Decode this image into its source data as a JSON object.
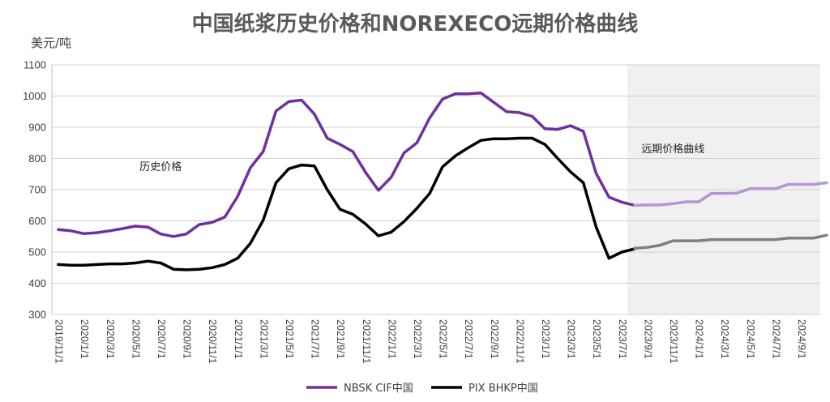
{
  "chart_data": {
    "type": "line",
    "title": "中国纸浆历史价格和NOREXECO远期价格曲线",
    "ylabel": "美元/吨",
    "ylim": [
      300,
      1100
    ],
    "yticks": [
      300,
      400,
      500,
      600,
      700,
      800,
      900,
      1000,
      1100
    ],
    "grid": "horizontal",
    "legend_position": "bottom",
    "x_start": "2019/11",
    "x_end": "2024/10",
    "forecast_start": "2023/7",
    "forecast_shading": "#f0f0f0",
    "x_tick_labels": [
      "2019/11/1",
      "2020/1/1",
      "2020/3/1",
      "2020/5/1",
      "2020/7/1",
      "2020/9/1",
      "2020/11/1",
      "2021/1/1",
      "2021/3/1",
      "2021/5/1",
      "2021/7/1",
      "2021/9/1",
      "2021/11/1",
      "2022/1/1",
      "2022/3/1",
      "2022/5/1",
      "2022/7/1",
      "2022/9/1",
      "2022/11/1",
      "2023/1/1",
      "2023/3/1",
      "2023/5/1",
      "2023/7/1",
      "2023/9/1",
      "2023/11/1",
      "2024/1/1",
      "2024/3/1",
      "2024/5/1",
      "2024/7/1",
      "2024/9/1"
    ],
    "annotations": [
      {
        "text": "历史价格",
        "at": [
          "2020/7",
          762
        ]
      },
      {
        "text": "远期价格曲线",
        "at": [
          "2023/11",
          820
        ]
      }
    ],
    "series": [
      {
        "name": "NBSK CIF中国",
        "color": "#7030a0",
        "values": [
          [
            "2019/11",
            572
          ],
          [
            "2019/12",
            568
          ],
          [
            "2020/1",
            559
          ],
          [
            "2020/2",
            562
          ],
          [
            "2020/3",
            568
          ],
          [
            "2020/4",
            575
          ],
          [
            "2020/5",
            583
          ],
          [
            "2020/6",
            580
          ],
          [
            "2020/7",
            558
          ],
          [
            "2020/8",
            550
          ],
          [
            "2020/9",
            558
          ],
          [
            "2020/10",
            588
          ],
          [
            "2020/11",
            595
          ],
          [
            "2020/12",
            612
          ],
          [
            "2021/1",
            678
          ],
          [
            "2021/2",
            770
          ],
          [
            "2021/3",
            822
          ],
          [
            "2021/4",
            952
          ],
          [
            "2021/5",
            982
          ],
          [
            "2021/6",
            987
          ],
          [
            "2021/7",
            942
          ],
          [
            "2021/8",
            865
          ],
          [
            "2021/9",
            845
          ],
          [
            "2021/10",
            822
          ],
          [
            "2021/11",
            755
          ],
          [
            "2021/12",
            698
          ],
          [
            "2022/1",
            740
          ],
          [
            "2022/2",
            818
          ],
          [
            "2022/3",
            850
          ],
          [
            "2022/4",
            930
          ],
          [
            "2022/5",
            990
          ],
          [
            "2022/6",
            1007
          ],
          [
            "2022/7",
            1007
          ],
          [
            "2022/8",
            1010
          ],
          [
            "2022/9",
            980
          ],
          [
            "2022/10",
            950
          ],
          [
            "2022/11",
            947
          ],
          [
            "2022/12",
            935
          ],
          [
            "2023/1",
            895
          ],
          [
            "2023/2",
            893
          ],
          [
            "2023/3",
            905
          ],
          [
            "2023/4",
            887
          ],
          [
            "2023/5",
            752
          ],
          [
            "2023/6",
            676
          ],
          [
            "2023/7",
            660
          ],
          [
            "2023/8",
            650
          ]
        ]
      },
      {
        "name": "PIX BHKP中国",
        "color": "#000000",
        "values": [
          [
            "2019/11",
            460
          ],
          [
            "2019/12",
            458
          ],
          [
            "2020/1",
            458
          ],
          [
            "2020/2",
            460
          ],
          [
            "2020/3",
            462
          ],
          [
            "2020/4",
            462
          ],
          [
            "2020/5",
            465
          ],
          [
            "2020/6",
            471
          ],
          [
            "2020/7",
            465
          ],
          [
            "2020/8",
            445
          ],
          [
            "2020/9",
            443
          ],
          [
            "2020/10",
            445
          ],
          [
            "2020/11",
            450
          ],
          [
            "2020/12",
            460
          ],
          [
            "2021/1",
            480
          ],
          [
            "2021/2",
            528
          ],
          [
            "2021/3",
            602
          ],
          [
            "2021/4",
            722
          ],
          [
            "2021/5",
            767
          ],
          [
            "2021/6",
            779
          ],
          [
            "2021/7",
            776
          ],
          [
            "2021/8",
            700
          ],
          [
            "2021/9",
            637
          ],
          [
            "2021/10",
            621
          ],
          [
            "2021/11",
            590
          ],
          [
            "2021/12",
            552
          ],
          [
            "2022/1",
            564
          ],
          [
            "2022/2",
            598
          ],
          [
            "2022/3",
            640
          ],
          [
            "2022/4",
            688
          ],
          [
            "2022/5",
            773
          ],
          [
            "2022/6",
            808
          ],
          [
            "2022/7",
            834
          ],
          [
            "2022/8",
            858
          ],
          [
            "2022/9",
            863
          ],
          [
            "2022/10",
            863
          ],
          [
            "2022/11",
            865
          ],
          [
            "2022/12",
            865
          ],
          [
            "2023/1",
            845
          ],
          [
            "2023/2",
            800
          ],
          [
            "2023/3",
            757
          ],
          [
            "2023/4",
            722
          ],
          [
            "2023/5",
            580
          ],
          [
            "2023/6",
            480
          ],
          [
            "2023/7",
            500
          ],
          [
            "2023/8",
            510
          ]
        ]
      },
      {
        "name": "",
        "color": "#b497d1",
        "values": [
          [
            "2023/8",
            650
          ],
          [
            "2023/9",
            651
          ],
          [
            "2023/10",
            651
          ],
          [
            "2023/11",
            655
          ],
          [
            "2023/12",
            661
          ],
          [
            "2024/1",
            661
          ],
          [
            "2024/2",
            688
          ],
          [
            "2024/3",
            688
          ],
          [
            "2024/4",
            689
          ],
          [
            "2024/5",
            703
          ],
          [
            "2024/6",
            703
          ],
          [
            "2024/7",
            703
          ],
          [
            "2024/8",
            717
          ],
          [
            "2024/9",
            717
          ],
          [
            "2024/10",
            717
          ],
          [
            "2024/11",
            722
          ]
        ]
      },
      {
        "name": "",
        "color": "#808080",
        "values": [
          [
            "2023/8",
            512
          ],
          [
            "2023/9",
            515
          ],
          [
            "2023/10",
            522
          ],
          [
            "2023/11",
            536
          ],
          [
            "2023/12",
            536
          ],
          [
            "2024/1",
            536
          ],
          [
            "2024/2",
            540
          ],
          [
            "2024/3",
            540
          ],
          [
            "2024/4",
            540
          ],
          [
            "2024/5",
            540
          ],
          [
            "2024/6",
            540
          ],
          [
            "2024/7",
            540
          ],
          [
            "2024/8",
            545
          ],
          [
            "2024/9",
            545
          ],
          [
            "2024/10",
            545
          ],
          [
            "2024/11",
            554
          ]
        ]
      }
    ]
  }
}
